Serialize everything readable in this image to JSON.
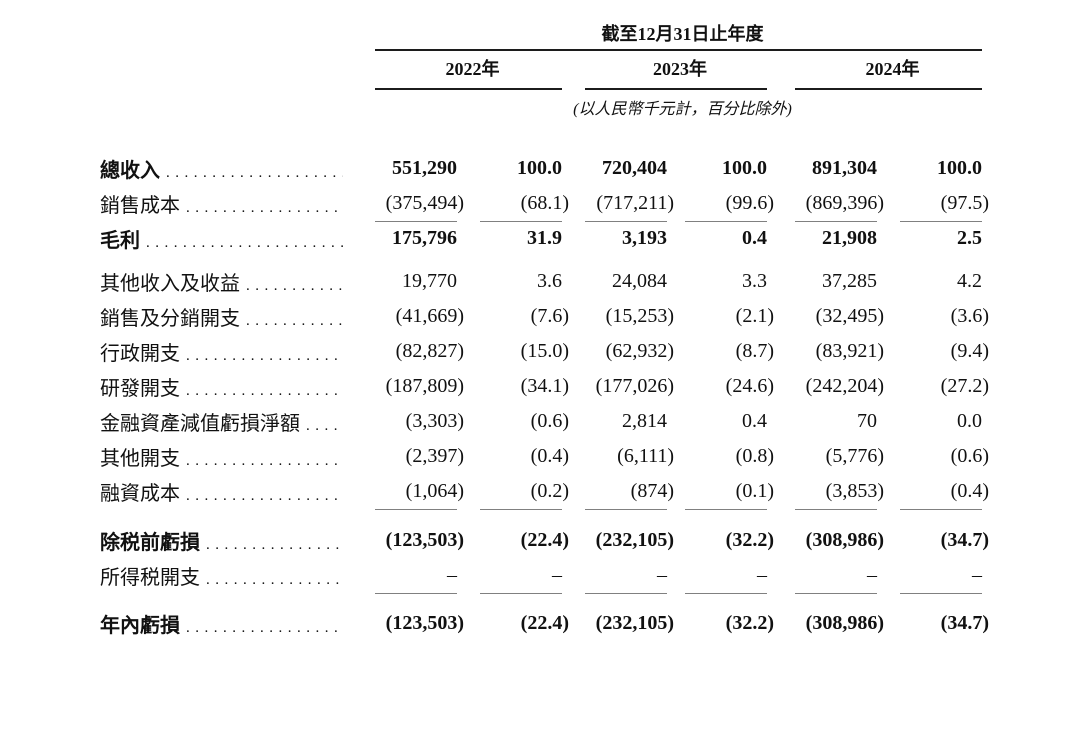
{
  "header": {
    "period_title": "截至12月31日止年度",
    "years": [
      "2022年",
      "2023年",
      "2024年"
    ],
    "unit_note": "(以人民幣千元計，百分比除外)"
  },
  "table": {
    "rows": [
      {
        "label": "總收入",
        "values": [
          "551,290",
          "100.0",
          "720,404",
          "100.0",
          "891,304",
          "100.0"
        ]
      },
      {
        "label": "銷售成本",
        "values": [
          "(375,494)",
          "(68.1)",
          "(717,211)",
          "(99.6)",
          "(869,396)",
          "(97.5)"
        ]
      },
      {
        "label": "毛利",
        "values": [
          "175,796",
          "31.9",
          "3,193",
          "0.4",
          "21,908",
          "2.5"
        ]
      },
      {
        "label": "其他收入及收益",
        "values": [
          "19,770",
          "3.6",
          "24,084",
          "3.3",
          "37,285",
          "4.2"
        ]
      },
      {
        "label": "銷售及分銷開支",
        "values": [
          "(41,669)",
          "(7.6)",
          "(15,253)",
          "(2.1)",
          "(32,495)",
          "(3.6)"
        ]
      },
      {
        "label": "行政開支",
        "values": [
          "(82,827)",
          "(15.0)",
          "(62,932)",
          "(8.7)",
          "(83,921)",
          "(9.4)"
        ]
      },
      {
        "label": "研發開支",
        "values": [
          "(187,809)",
          "(34.1)",
          "(177,026)",
          "(24.6)",
          "(242,204)",
          "(27.2)"
        ]
      },
      {
        "label": "金融資產減值虧損淨額",
        "values": [
          "(3,303)",
          "(0.6)",
          "2,814",
          "0.4",
          "70",
          "0.0"
        ]
      },
      {
        "label": "其他開支",
        "values": [
          "(2,397)",
          "(0.4)",
          "(6,111)",
          "(0.8)",
          "(5,776)",
          "(0.6)"
        ]
      },
      {
        "label": "融資成本",
        "values": [
          "(1,064)",
          "(0.2)",
          "(874)",
          "(0.1)",
          "(3,853)",
          "(0.4)"
        ]
      },
      {
        "label": "除税前虧損",
        "values": [
          "(123,503)",
          "(22.4)",
          "(232,105)",
          "(32.2)",
          "(308,986)",
          "(34.7)"
        ]
      },
      {
        "label": "所得税開支",
        "values": [
          "–",
          "–",
          "–",
          "–",
          "–",
          "–"
        ]
      },
      {
        "label": "年內虧損",
        "values": [
          "(123,503)",
          "(22.4)",
          "(232,105)",
          "(32.2)",
          "(308,986)",
          "(34.7)"
        ]
      }
    ]
  },
  "colors": {
    "text": "#111111",
    "rule_dark": "#1c1c1c",
    "rule_light": "#808080"
  }
}
